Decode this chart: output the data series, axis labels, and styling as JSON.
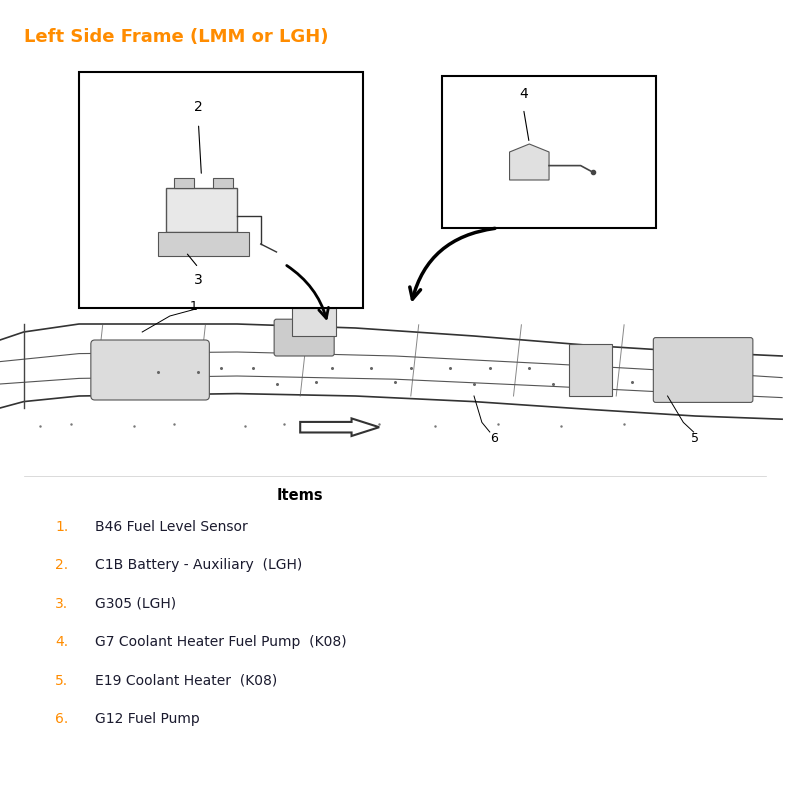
{
  "title": "Left Side Frame (LMM or LGH)",
  "title_color": "#FF8C00",
  "title_fontsize": 13,
  "title_bold": true,
  "bg_color": "#FFFFFF",
  "items_header": "Items",
  "items": [
    {
      "num": "1.",
      "text": "B46 Fuel Level Sensor"
    },
    {
      "num": "2.",
      "text": "C1B Battery - Auxiliary  (LGH)"
    },
    {
      "num": "3.",
      "text": "G305 (LGH)"
    },
    {
      "num": "4.",
      "text": "G7 Coolant Heater Fuel Pump  (K08)"
    },
    {
      "num": "5.",
      "text": "E19 Coolant Heater  (K08)"
    },
    {
      "num": "6.",
      "text": "G12 Fuel Pump"
    }
  ],
  "item_color": "#FF8C00",
  "item_fontsize": 10,
  "text_color": "#1a1a2e",
  "diagram_bg": "#FFFFFF"
}
